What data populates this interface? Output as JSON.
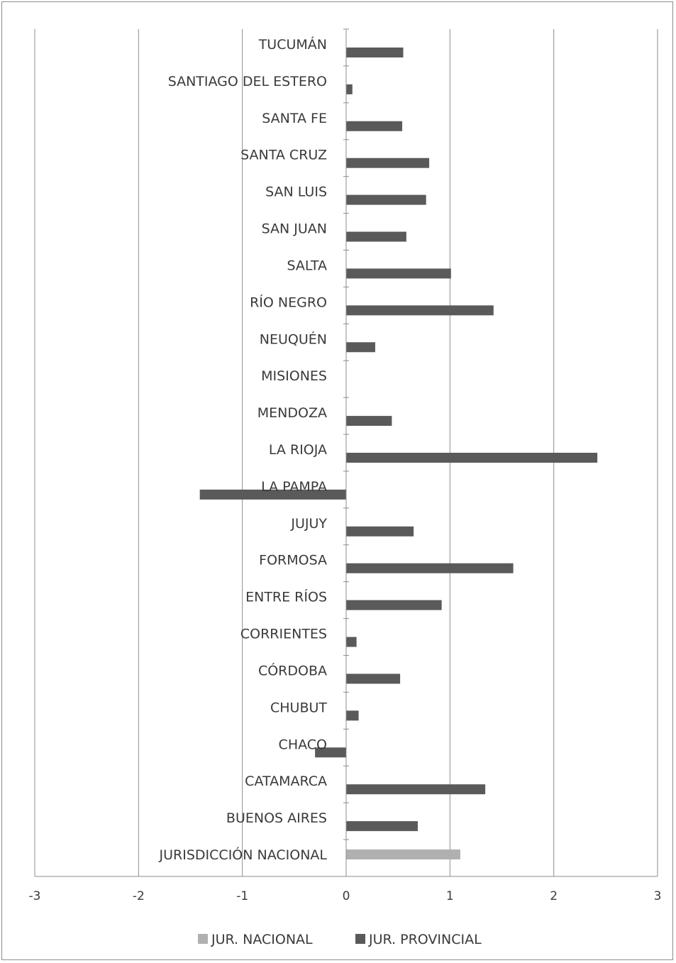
{
  "chart_data": {
    "type": "bar",
    "orientation": "horizontal",
    "categories": [
      "TUCUMÁN",
      "SANTIAGO DEL ESTERO",
      "SANTA FE",
      "SANTA CRUZ",
      "SAN LUIS",
      "SAN JUAN",
      "SALTA",
      "RÍO NEGRO",
      "NEUQUÉN",
      "MISIONES",
      "MENDOZA",
      "LA RIOJA",
      "LA PAMPA",
      "JUJUY",
      "FORMOSA",
      "ENTRE RÍOS",
      "CORRIENTES",
      "CÓRDOBA",
      "CHUBUT",
      "CHACO",
      "CATAMARCA",
      "BUENOS AIRES",
      "JURISDICCIÓN NACIONAL"
    ],
    "series": [
      {
        "name": "JUR. NACIONAL",
        "color": "#b0b0b0",
        "values": [
          null,
          null,
          null,
          null,
          null,
          null,
          null,
          null,
          null,
          null,
          null,
          null,
          null,
          null,
          null,
          null,
          null,
          null,
          null,
          null,
          null,
          null,
          1.1
        ]
      },
      {
        "name": "JUR. PROVINCIAL",
        "color": "#5a5a5a",
        "values": [
          0.55,
          0.06,
          0.54,
          0.8,
          0.77,
          0.58,
          1.01,
          1.42,
          0.28,
          0,
          0.44,
          2.42,
          -1.41,
          0.65,
          1.61,
          0.92,
          0.1,
          0.52,
          0.12,
          -0.3,
          1.34,
          0.69,
          null
        ]
      }
    ],
    "xlim": [
      -3,
      3
    ],
    "xticks": [
      "-3",
      "-2",
      "-1",
      "0",
      "1",
      "2",
      "3"
    ],
    "grid": "vertical",
    "legend_position": "bottom",
    "title": "",
    "xlabel": "",
    "ylabel": ""
  }
}
